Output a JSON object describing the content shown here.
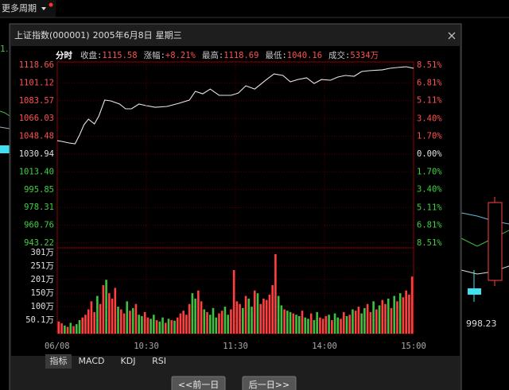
{
  "toolbar": {
    "period": "更多周期"
  },
  "background": {
    "labels": [
      "1.",
      "998.23"
    ]
  },
  "dialog": {
    "title": "上证指数(000001)",
    "date": "2005年6月8日",
    "weekday": "星期三"
  },
  "header": {
    "mode": "分时",
    "fields": [
      {
        "label": "收盘:",
        "value": "1115.58"
      },
      {
        "label": "涨幅:",
        "value": "+8.21%"
      },
      {
        "label": "最高:",
        "value": "1118.69"
      },
      {
        "label": "最低:",
        "value": "1040.16"
      },
      {
        "label": "成交:",
        "value": "5334万"
      }
    ]
  },
  "chart_data": [
    {
      "type": "line",
      "color": "#e6e6e6",
      "x": [
        0,
        3,
        8,
        12,
        15,
        18,
        21,
        25,
        28,
        32,
        36,
        42,
        46,
        50,
        55,
        60,
        66,
        74,
        82,
        89,
        93,
        98,
        103,
        109,
        117,
        122,
        127,
        133,
        141,
        146,
        152,
        157,
        162,
        168,
        173,
        178,
        184,
        189,
        194,
        200,
        205,
        210,
        219,
        224,
        229,
        235,
        240
      ],
      "values": [
        1044.2,
        1043.5,
        1041.9,
        1041.1,
        1049.7,
        1059.9,
        1065.4,
        1060.7,
        1068.5,
        1084.2,
        1083.4,
        1080.3,
        1075.6,
        1075.6,
        1080.3,
        1078.7,
        1077.1,
        1077.9,
        1081.1,
        1084.2,
        1092.8,
        1090.4,
        1095.1,
        1088.9,
        1088.9,
        1091.2,
        1098.3,
        1095.1,
        1104.5,
        1110,
        1108.5,
        1102.2,
        1104.5,
        1106.1,
        1100.6,
        1104.5,
        1103.8,
        1106.9,
        1108.5,
        1107.7,
        1112.4,
        1113.2,
        1114,
        1115.5,
        1116.3,
        1117.1,
        1115.58
      ],
      "xlim": [
        0,
        240
      ],
      "ylim": [
        943.22,
        1118.66
      ],
      "yticks": [
        1118.66,
        1101.12,
        1083.57,
        1066.03,
        1048.48,
        1030.94,
        {
          "value": 1013.4,
          "label": "1013.40"
        },
        995.85,
        978.31,
        960.76,
        943.22
      ],
      "y2lim": [
        -8.51,
        8.51
      ],
      "y2ticks": [
        {
          "value": 8.51,
          "label": "8.51%"
        },
        {
          "value": 6.81,
          "label": "6.81%"
        },
        {
          "value": 5.11,
          "label": "5.11%"
        },
        {
          "value": 3.4,
          "label": "3.40%"
        },
        {
          "value": 1.7,
          "label": "1.70%"
        },
        {
          "value": 0,
          "label": "0.00%"
        },
        {
          "value": -1.7,
          "label": "1.70%"
        },
        {
          "value": -3.4,
          "label": "3.40%"
        },
        {
          "value": -5.11,
          "label": "5.11%"
        },
        {
          "value": -6.81,
          "label": "6.81%"
        },
        {
          "value": -8.51,
          "label": "8.51%"
        }
      ],
      "grid": true
    },
    {
      "type": "bar",
      "palette": {
        "u": "#ff4040",
        "d": "#40c040"
      },
      "direction": "uudududduuuuuduuduuuduudududduudduddududuuuuudduududdduudduuuududduduuuuuudduddudduddudduuududduududuudduududuudududuuuu",
      "x": [
        1,
        3,
        5,
        7,
        9,
        11,
        13,
        15,
        17,
        19,
        21,
        23,
        25,
        27,
        29,
        31,
        33,
        35,
        37,
        39,
        41,
        43,
        45,
        47,
        49,
        51,
        53,
        55,
        57,
        59,
        61,
        63,
        65,
        67,
        69,
        71,
        73,
        75,
        77,
        79,
        81,
        83,
        85,
        87,
        89,
        91,
        93,
        95,
        97,
        99,
        101,
        103,
        105,
        107,
        109,
        111,
        113,
        115,
        117,
        119,
        121,
        123,
        125,
        127,
        129,
        131,
        133,
        135,
        137,
        139,
        141,
        143,
        145,
        147,
        149,
        151,
        153,
        155,
        157,
        159,
        161,
        163,
        165,
        167,
        169,
        171,
        173,
        175,
        177,
        179,
        181,
        183,
        185,
        187,
        189,
        191,
        193,
        195,
        197,
        199,
        201,
        203,
        205,
        207,
        209,
        211,
        213,
        215,
        217,
        219,
        221,
        223,
        225,
        227,
        229,
        231,
        233,
        235,
        237,
        239
      ],
      "values": [
        45,
        38,
        30,
        25,
        40,
        28,
        35,
        50,
        60,
        70,
        90,
        120,
        80,
        140,
        110,
        180,
        200,
        150,
        130,
        170,
        100,
        90,
        75,
        120,
        85,
        95,
        110,
        70,
        65,
        80,
        60,
        55,
        70,
        50,
        45,
        60,
        40,
        55,
        50,
        48,
        60,
        75,
        85,
        70,
        110,
        150,
        130,
        160,
        120,
        90,
        80,
        70,
        95,
        60,
        75,
        85,
        100,
        70,
        90,
        236,
        120,
        110,
        95,
        140,
        130,
        100,
        160,
        150,
        110,
        130,
        125,
        145,
        180,
        295,
        140,
        105,
        90,
        85,
        80,
        75,
        70,
        65,
        85,
        60,
        55,
        75,
        50,
        80,
        60,
        55,
        65,
        70,
        50,
        75,
        60,
        55,
        80,
        65,
        70,
        90,
        85,
        100,
        75,
        95,
        110,
        80,
        120,
        90,
        105,
        125,
        110,
        130,
        95,
        140,
        120,
        150,
        135,
        160,
        145,
        212
      ],
      "xlim": [
        0,
        240
      ],
      "xticks": [
        {
          "value": 0,
          "label": "06/08"
        },
        {
          "value": 60,
          "label": "10:30"
        },
        {
          "value": 120,
          "label": "11:30"
        },
        {
          "value": 180,
          "label": "14:00"
        },
        {
          "value": 240,
          "label": "15:00"
        }
      ],
      "ylim": [
        0,
        301
      ],
      "yticks": [
        {
          "value": 301,
          "label": "301万"
        },
        {
          "value": 251,
          "label": "251万"
        },
        {
          "value": 201,
          "label": "201万"
        },
        {
          "value": 150,
          "label": "150万"
        },
        {
          "value": 100,
          "label": "100万"
        },
        {
          "value": 50.1,
          "label": "50.1万"
        }
      ],
      "grid": true
    }
  ],
  "tabs": [
    "指标",
    "MACD",
    "KDJ",
    "RSI"
  ],
  "buttons": [
    "<<前一日",
    "后一日>>"
  ]
}
